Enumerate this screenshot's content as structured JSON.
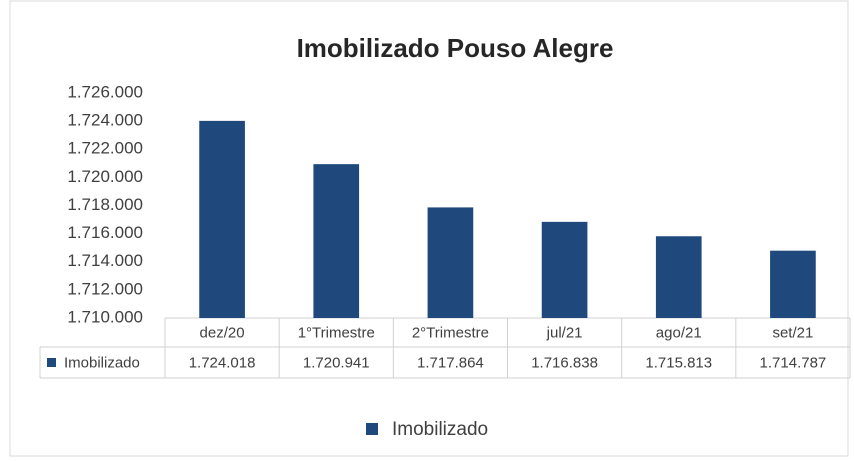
{
  "chart_data": {
    "type": "bar",
    "title": "Imobilizado Pouso Alegre",
    "categories": [
      "dez/20",
      "1°Trimestre",
      "2°Trimestre",
      "jul/21",
      "ago/21",
      "set/21"
    ],
    "series": [
      {
        "name": "Imobilizado",
        "color": "#1f497d",
        "values": [
          1724018,
          1720941,
          1717864,
          1716838,
          1715813,
          1714787
        ],
        "value_labels": [
          "1.724.018",
          "1.720.941",
          "1.717.864",
          "1.716.838",
          "1.715.813",
          "1.714.787"
        ]
      }
    ],
    "ylim": [
      1710000,
      1726000
    ],
    "yticks": [
      {
        "value": 1710000,
        "label": "1.710.000"
      },
      {
        "value": 1712000,
        "label": "1.712.000"
      },
      {
        "value": 1714000,
        "label": "1.714.000"
      },
      {
        "value": 1716000,
        "label": "1.716.000"
      },
      {
        "value": 1718000,
        "label": "1.718.000"
      },
      {
        "value": 1720000,
        "label": "1.720.000"
      },
      {
        "value": 1722000,
        "label": "1.722.000"
      },
      {
        "value": 1724000,
        "label": "1.724.000"
      },
      {
        "value": 1726000,
        "label": "1.726.000"
      }
    ],
    "grid": false,
    "legend": "bottom"
  }
}
